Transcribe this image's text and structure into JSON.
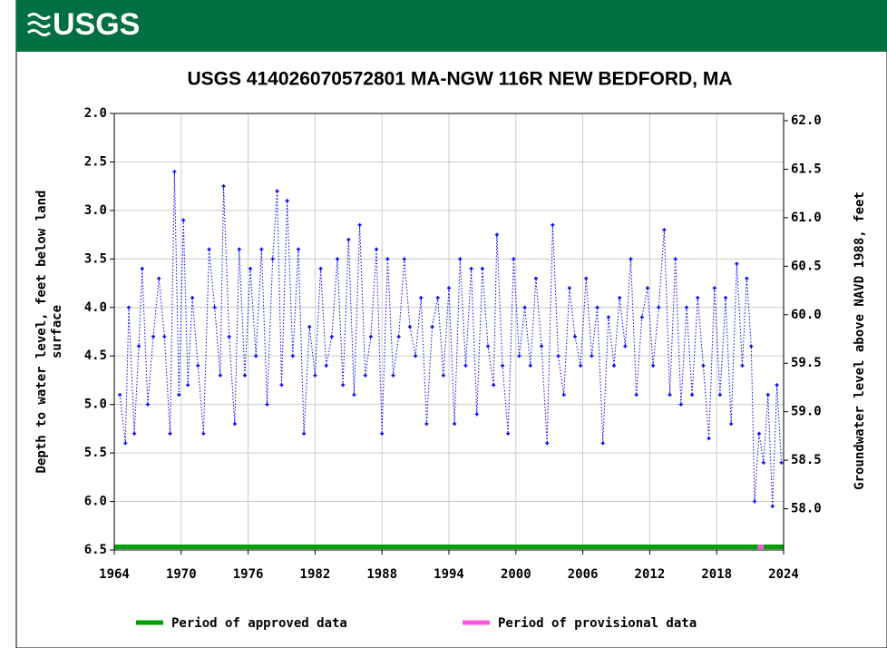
{
  "header": {
    "logo": "USGS"
  },
  "chart_data": {
    "type": "scatter",
    "title": "USGS 414026070572801 MA-NGW  116R NEW BEDFORD, MA",
    "ylabel": [
      "Depth to water level, feet below land",
      "surface"
    ],
    "y2label": "Groundwater level above NAVD 1988, feet",
    "xlim": [
      1964,
      2024
    ],
    "xticks": [
      1964,
      1970,
      1976,
      1982,
      1988,
      1994,
      2000,
      2006,
      2012,
      2018,
      2024
    ],
    "ylim": [
      6.5,
      2.0
    ],
    "yticks": [
      {
        "value": 2.0,
        "label": "2.0"
      },
      {
        "value": 2.5,
        "label": "2.5"
      },
      {
        "value": 3.0,
        "label": "3.0"
      },
      {
        "value": 3.5,
        "label": "3.5"
      },
      {
        "value": 4.0,
        "label": "4.0"
      },
      {
        "value": 4.5,
        "label": "4.5"
      },
      {
        "value": 5.0,
        "label": "5.0"
      },
      {
        "value": 5.5,
        "label": "5.5"
      },
      {
        "value": 6.0,
        "label": "6.0"
      },
      {
        "value": 6.5,
        "label": "6.5"
      }
    ],
    "y2lim": [
      57.575,
      62.075
    ],
    "y2ticks": [
      {
        "value": 58.0,
        "label": "58.0"
      },
      {
        "value": 58.5,
        "label": "58.5"
      },
      {
        "value": 59.0,
        "label": "59.0"
      },
      {
        "value": 59.5,
        "label": "59.5"
      },
      {
        "value": 60.0,
        "label": "60.0"
      },
      {
        "value": 60.5,
        "label": "60.5"
      },
      {
        "value": 61.0,
        "label": "61.0"
      },
      {
        "value": 61.5,
        "label": "61.5"
      },
      {
        "value": 62.0,
        "label": "62.0"
      }
    ],
    "grid": true,
    "series": [
      {
        "color": "#0000ff",
        "x": [
          1964.5,
          1965.0,
          1965.3,
          1965.8,
          1966.2,
          1966.5,
          1967.0,
          1967.5,
          1968.0,
          1968.5,
          1969.0,
          1969.4,
          1969.8,
          1970.2,
          1970.6,
          1971.0,
          1971.5,
          1972.0,
          1972.5,
          1973.0,
          1973.5,
          1973.8,
          1974.3,
          1974.8,
          1975.2,
          1975.7,
          1976.2,
          1976.7,
          1977.2,
          1977.7,
          1978.2,
          1978.6,
          1979.0,
          1979.5,
          1980.0,
          1980.5,
          1981.0,
          1981.5,
          1982.0,
          1982.5,
          1983.0,
          1983.5,
          1984.0,
          1984.5,
          1985.0,
          1985.5,
          1986.0,
          1986.5,
          1987.0,
          1987.5,
          1988.0,
          1988.5,
          1989.0,
          1989.5,
          1990.0,
          1990.5,
          1991.0,
          1991.5,
          1992.0,
          1992.5,
          1993.0,
          1993.5,
          1994.0,
          1994.5,
          1995.0,
          1995.5,
          1996.0,
          1996.5,
          1997.0,
          1997.5,
          1998.0,
          1998.3,
          1998.8,
          1999.3,
          1999.8,
          2000.3,
          2000.8,
          2001.3,
          2001.8,
          2002.3,
          2002.8,
          2003.3,
          2003.8,
          2004.3,
          2004.8,
          2005.3,
          2005.8,
          2006.3,
          2006.8,
          2007.3,
          2007.8,
          2008.3,
          2008.8,
          2009.3,
          2009.8,
          2010.3,
          2010.8,
          2011.3,
          2011.8,
          2012.3,
          2012.8,
          2013.3,
          2013.8,
          2014.3,
          2014.8,
          2015.3,
          2015.8,
          2016.3,
          2016.8,
          2017.3,
          2017.8,
          2018.3,
          2018.8,
          2019.3,
          2019.8,
          2020.3,
          2020.7,
          2021.1,
          2021.4,
          2021.8,
          2022.2,
          2022.6,
          2023.0,
          2023.4,
          2023.8
        ],
        "values": [
          4.9,
          5.4,
          4.0,
          5.3,
          4.4,
          3.6,
          5.0,
          4.3,
          3.7,
          4.3,
          5.3,
          2.6,
          4.9,
          3.1,
          4.8,
          3.9,
          4.6,
          5.3,
          3.4,
          4.0,
          4.7,
          2.75,
          4.3,
          5.2,
          3.4,
          4.7,
          3.6,
          4.5,
          3.4,
          5.0,
          3.5,
          2.8,
          4.8,
          2.9,
          4.5,
          3.4,
          5.3,
          4.2,
          4.7,
          3.6,
          4.6,
          4.3,
          3.5,
          4.8,
          3.3,
          4.9,
          3.15,
          4.7,
          4.3,
          3.4,
          5.3,
          3.5,
          4.7,
          4.3,
          3.5,
          4.2,
          4.5,
          3.9,
          5.2,
          4.2,
          3.9,
          4.7,
          3.8,
          5.2,
          3.5,
          4.6,
          3.6,
          5.1,
          3.6,
          4.4,
          4.8,
          3.25,
          4.6,
          5.3,
          3.5,
          4.5,
          4.0,
          4.6,
          3.7,
          4.4,
          5.4,
          3.15,
          4.5,
          4.9,
          3.8,
          4.3,
          4.6,
          3.7,
          4.5,
          4.0,
          5.4,
          4.1,
          4.6,
          3.9,
          4.4,
          3.5,
          4.9,
          4.1,
          3.8,
          4.6,
          4.0,
          3.2,
          4.9,
          3.5,
          5.0,
          4.0,
          4.9,
          3.9,
          4.6,
          5.35,
          3.8,
          4.9,
          3.9,
          5.2,
          3.55,
          4.6,
          3.7,
          4.4,
          6.0,
          5.3,
          5.6,
          4.9,
          6.05,
          4.8,
          5.6
        ]
      }
    ],
    "periods": [
      {
        "name": "Period of approved data",
        "color": "#00a000",
        "spans": [
          [
            1964,
            2021.7
          ],
          [
            2022.2,
            2024
          ]
        ]
      },
      {
        "name": "Period of provisional data",
        "color": "#ff55dd",
        "spans": [
          [
            2021.7,
            2022.2
          ]
        ]
      }
    ]
  }
}
